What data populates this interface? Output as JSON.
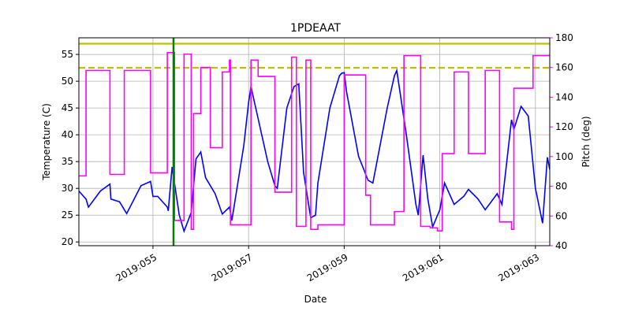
{
  "chart_data": {
    "type": "line",
    "title": "1PDEAAT",
    "x_label": "Date",
    "y_label": "Temperature (C)",
    "y2_label": "Pitch (deg)",
    "y2_color": "#ff00ff",
    "grid": true,
    "xlim": [
      53.45,
      63.3
    ],
    "xticks": [
      {
        "value": 55,
        "label": "2019:055"
      },
      {
        "value": 57,
        "label": "2019:057"
      },
      {
        "value": 59,
        "label": "2019:059"
      },
      {
        "value": 61,
        "label": "2019:061"
      },
      {
        "value": 63,
        "label": "2019:063"
      }
    ],
    "ylim": [
      19.3,
      58.1
    ],
    "yticks": [
      20,
      25,
      30,
      35,
      40,
      45,
      50,
      55
    ],
    "y2lim": [
      40,
      180
    ],
    "y2ticks": [
      40,
      60,
      80,
      100,
      120,
      140,
      160,
      180
    ],
    "hlines": [
      {
        "value": 57,
        "color": "#bfbf00",
        "style": "solid"
      },
      {
        "value": 52.5,
        "color": "#bfbf00",
        "style": "dashed"
      }
    ],
    "vlines": [
      {
        "value": 55.43,
        "color": "#008000"
      }
    ],
    "series": [
      {
        "color": "#0000ff",
        "x": [
          53.45,
          53.6,
          53.65,
          53.9,
          54.1,
          54.12,
          54.3,
          54.45,
          54.75,
          54.95,
          55.0,
          55.1,
          55.3,
          55.32,
          55.4,
          55.55,
          55.65,
          55.8,
          55.9,
          56.0,
          56.1,
          56.3,
          56.45,
          56.6,
          56.65,
          56.9,
          57.0,
          57.05,
          57.15,
          57.4,
          57.55,
          57.6,
          57.8,
          57.95,
          58.05,
          58.15,
          58.3,
          58.4,
          58.45,
          58.7,
          58.9,
          58.95,
          59.0,
          59.05,
          59.3,
          59.5,
          59.6,
          59.9,
          60.05,
          60.1,
          60.3,
          60.5,
          60.55,
          60.65,
          60.75,
          60.85,
          61.0,
          61.1,
          61.3,
          61.5,
          61.6,
          61.8,
          61.95,
          62.2,
          62.3,
          62.5,
          62.55,
          62.7,
          62.85,
          63.0,
          63.15,
          63.25,
          63.3
        ],
        "values": [
          29.5,
          28,
          26.5,
          29.5,
          30.8,
          28,
          27.5,
          25.3,
          30.5,
          31.3,
          28.5,
          28.5,
          26.5,
          25.8,
          34,
          25,
          22,
          25.5,
          35.5,
          36.8,
          32,
          29,
          25.2,
          26.5,
          24,
          38,
          46,
          49,
          45,
          35,
          30.5,
          30,
          45,
          49,
          49.5,
          33,
          24.5,
          25,
          31,
          45,
          51,
          51.5,
          51.6,
          48,
          36,
          31.5,
          31,
          45,
          51,
          52,
          40,
          27,
          25,
          36.2,
          28,
          22.8,
          26,
          31,
          27,
          28.5,
          29.8,
          28,
          26,
          29,
          27,
          42.8,
          41,
          45.3,
          43.5,
          30,
          23.5,
          35.8,
          33.5
        ]
      },
      {
        "color": "#ff00ff",
        "axis": "y2",
        "x": [
          53.45,
          53.6,
          53.6,
          54.1,
          54.1,
          54.4,
          54.4,
          54.95,
          54.95,
          55.3,
          55.3,
          55.45,
          55.45,
          55.65,
          55.65,
          55.8,
          55.8,
          55.85,
          55.85,
          56.0,
          56.0,
          56.2,
          56.2,
          56.45,
          56.45,
          56.6,
          56.6,
          56.62,
          56.62,
          57.05,
          57.05,
          57.2,
          57.2,
          57.55,
          57.55,
          57.9,
          57.9,
          58.0,
          58.0,
          58.2,
          58.2,
          58.3,
          58.3,
          58.45,
          58.45,
          59.0,
          59.0,
          59.45,
          59.45,
          59.55,
          59.55,
          60.05,
          60.05,
          60.25,
          60.25,
          60.6,
          60.6,
          60.8,
          60.8,
          60.95,
          60.95,
          61.05,
          61.05,
          61.3,
          61.3,
          61.6,
          61.6,
          61.95,
          61.95,
          62.25,
          62.25,
          62.5,
          62.5,
          62.55,
          62.55,
          62.95,
          62.95,
          63.15,
          63.15,
          63.3
        ],
        "values": [
          87,
          87,
          158,
          158,
          88,
          88,
          158,
          158,
          89,
          89,
          170,
          170,
          57,
          57,
          169,
          169,
          51,
          51,
          129,
          129,
          160,
          160,
          106,
          106,
          157,
          157,
          165,
          165,
          54,
          54,
          165,
          165,
          154,
          154,
          76,
          76,
          167,
          167,
          53,
          53,
          165,
          165,
          51,
          51,
          54,
          54,
          155,
          155,
          74,
          74,
          54,
          54,
          63,
          63,
          168,
          168,
          53,
          53,
          52,
          52,
          50,
          50,
          102,
          102,
          157,
          157,
          102,
          102,
          158,
          158,
          56,
          56,
          51,
          51,
          146,
          146,
          168,
          168,
          168,
          168
        ]
      }
    ]
  }
}
